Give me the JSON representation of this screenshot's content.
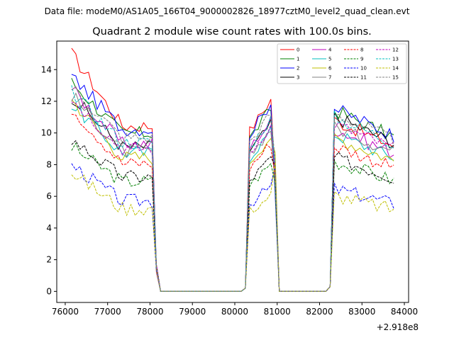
{
  "chart_data": {
    "type": "line",
    "suptitle": "Data file: modeM0/AS1A05_166T04_9000002826_18977cztM0_level2_quad_clean.evt",
    "title": "Quadrant 2 module wise count rates with 100.0s bins.",
    "offset_label": "+2.918e8",
    "xlim": [
      75800,
      84100
    ],
    "ylim": [
      -0.7,
      15.8
    ],
    "x_ticks": [
      76000,
      77000,
      78000,
      79000,
      80000,
      81000,
      82000,
      83000,
      84000
    ],
    "x_tick_labels": [
      "76000",
      "77000",
      "78000",
      "79000",
      "80000",
      "81000",
      "82000",
      "83000",
      "84000"
    ],
    "y_ticks": [
      0,
      2,
      4,
      6,
      8,
      10,
      12,
      14
    ],
    "y_tick_labels": [
      "0",
      "2",
      "4",
      "6",
      "8",
      "10",
      "12",
      "14"
    ],
    "legend_position": "upper right",
    "segments": [
      {
        "x_start": 76150,
        "x_end": 78050
      },
      {
        "x_start": 80350,
        "x_end": 80850
      },
      {
        "x_start": 82350,
        "x_end": 83750
      }
    ],
    "series": [
      {
        "name": "0",
        "color": "#ff0000",
        "dash": "solid",
        "levels": [
          15.0,
          11.0,
          10.0
        ]
      },
      {
        "name": "1",
        "color": "#008000",
        "dash": "solid",
        "levels": [
          13.2,
          10.5,
          10.6
        ]
      },
      {
        "name": "2",
        "color": "#0000ff",
        "dash": "solid",
        "levels": [
          13.6,
          10.8,
          10.7
        ]
      },
      {
        "name": "3",
        "color": "#000000",
        "dash": "solid",
        "levels": [
          12.3,
          9.6,
          10.2
        ]
      },
      {
        "name": "4",
        "color": "#bf00bf",
        "dash": "solid",
        "levels": [
          12.8,
          9.8,
          9.5
        ]
      },
      {
        "name": "5",
        "color": "#00bfbf",
        "dash": "solid",
        "levels": [
          11.8,
          9.2,
          9.2
        ]
      },
      {
        "name": "6",
        "color": "#bfbf00",
        "dash": "solid",
        "levels": [
          12.1,
          8.9,
          9.0
        ]
      },
      {
        "name": "7",
        "color": "#808080",
        "dash": "solid",
        "levels": [
          12.4,
          9.3,
          9.6
        ]
      },
      {
        "name": "8",
        "color": "#ff0000",
        "dash": "dashed",
        "levels": [
          11.6,
          8.5,
          8.5
        ]
      },
      {
        "name": "9",
        "color": "#008000",
        "dash": "dashed",
        "levels": [
          9.1,
          7.3,
          7.6
        ]
      },
      {
        "name": "10",
        "color": "#0000ff",
        "dash": "dashed",
        "levels": [
          8.0,
          6.0,
          6.0
        ]
      },
      {
        "name": "11",
        "color": "#000000",
        "dash": "dashed",
        "levels": [
          9.6,
          7.6,
          7.8
        ]
      },
      {
        "name": "12",
        "color": "#bf00bf",
        "dash": "dashed",
        "levels": [
          12.2,
          9.5,
          9.8
        ]
      },
      {
        "name": "13",
        "color": "#00bfbf",
        "dash": "dashed",
        "levels": [
          12.6,
          9.9,
          10.2
        ]
      },
      {
        "name": "14",
        "color": "#bfbf00",
        "dash": "dashed",
        "levels": [
          7.5,
          5.5,
          5.6
        ]
      },
      {
        "name": "15",
        "color": "#808080",
        "dash": "dashed",
        "levels": [
          12.9,
          10.2,
          10.4
        ]
      }
    ]
  }
}
